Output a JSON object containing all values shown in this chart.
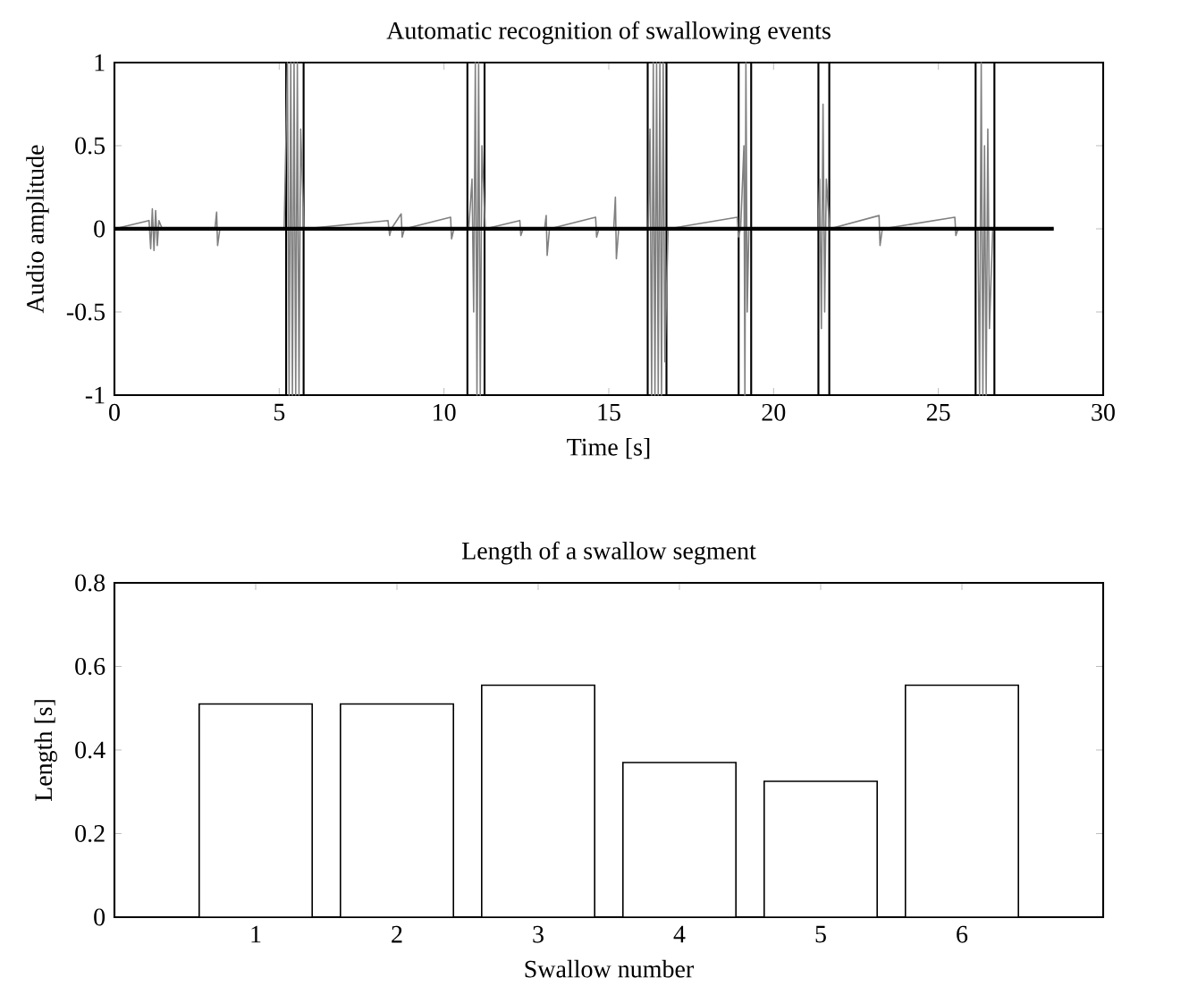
{
  "chart_data": [
    {
      "type": "line",
      "title": "Automatic recognition of swallowing events",
      "xlabel": "Time [s]",
      "ylabel": "Audio amplitude",
      "xlim": [
        0,
        30
      ],
      "ylim": [
        -1,
        1
      ],
      "xticks": [
        0,
        5,
        10,
        15,
        20,
        25,
        30
      ],
      "yticks": [
        -1,
        -0.5,
        0,
        0.5,
        1
      ],
      "series": [
        {
          "color": "#808080",
          "x": [
            0,
            1.05,
            1.1,
            1.15,
            1.2,
            1.25,
            1.3,
            1.35,
            1.45,
            3.05,
            3.1,
            3.13,
            3.2,
            5.15,
            5.25,
            5.3,
            5.35,
            5.4,
            5.45,
            5.5,
            5.55,
            5.6,
            5.65,
            5.75,
            8.3,
            8.35,
            8.4,
            8.7,
            8.73,
            8.8,
            10.2,
            10.23,
            10.3,
            10.75,
            10.85,
            10.9,
            10.95,
            11.0,
            11.05,
            11.1,
            11.15,
            11.25,
            12.3,
            12.33,
            12.4,
            13.05,
            13.1,
            13.13,
            13.2,
            14.6,
            14.63,
            14.7,
            15.15,
            15.2,
            15.23,
            15.3,
            16.2,
            16.25,
            16.3,
            16.35,
            16.4,
            16.45,
            16.5,
            16.55,
            16.6,
            16.65,
            16.7,
            16.8,
            18.9,
            18.93,
            19.0,
            19.1,
            19.13,
            19.16,
            19.2,
            19.25,
            21.35,
            21.4,
            21.45,
            21.5,
            21.55,
            21.6,
            21.7,
            23.2,
            23.23,
            23.3,
            25.5,
            25.53,
            25.6,
            26.2,
            26.25,
            26.3,
            26.35,
            26.4,
            26.45,
            26.5,
            26.55,
            26.65,
            28.5
          ],
          "values": [
            0,
            0.05,
            -0.12,
            0.12,
            -0.13,
            0.11,
            -0.1,
            0.05,
            0,
            0,
            0.1,
            -0.1,
            0,
            0,
            1,
            -1,
            1,
            -1,
            1,
            -1,
            1,
            -1,
            0.6,
            0,
            0.05,
            -0.04,
            0,
            0.09,
            -0.05,
            0,
            0.07,
            -0.06,
            0,
            0,
            0.3,
            -0.5,
            1,
            -1,
            1,
            -1,
            0.5,
            0,
            0.05,
            -0.04,
            0,
            0,
            0.08,
            -0.16,
            0,
            0.07,
            -0.05,
            0,
            0,
            0.19,
            -0.18,
            0,
            0,
            0.6,
            -1,
            1,
            -1,
            1,
            -1,
            1,
            -1,
            1,
            -0.8,
            0,
            0.07,
            -0.05,
            0,
            0.5,
            -1,
            1,
            -0.5,
            0,
            0,
            0.3,
            -0.6,
            0.75,
            -0.5,
            0.3,
            0,
            0.08,
            -0.1,
            0,
            0.07,
            -0.04,
            0,
            0,
            -1,
            1,
            -1,
            0.5,
            -1,
            0.6,
            -0.6,
            0,
            0
          ]
        },
        {
          "color": "#000000",
          "x": [
            0,
            28.5
          ],
          "values": [
            0,
            0
          ]
        }
      ],
      "ref_lines": [
        {
          "axis": "x",
          "value": 5.21,
          "color": "#000000"
        },
        {
          "axis": "x",
          "value": 5.74,
          "color": "#000000"
        },
        {
          "axis": "x",
          "value": 10.71,
          "color": "#000000"
        },
        {
          "axis": "x",
          "value": 11.23,
          "color": "#000000"
        },
        {
          "axis": "x",
          "value": 16.18,
          "color": "#000000"
        },
        {
          "axis": "x",
          "value": 16.75,
          "color": "#000000"
        },
        {
          "axis": "x",
          "value": 18.94,
          "color": "#000000"
        },
        {
          "axis": "x",
          "value": 19.32,
          "color": "#000000"
        },
        {
          "axis": "x",
          "value": 21.36,
          "color": "#000000"
        },
        {
          "axis": "x",
          "value": 21.69,
          "color": "#000000"
        },
        {
          "axis": "x",
          "value": 26.13,
          "color": "#000000"
        },
        {
          "axis": "x",
          "value": 26.7,
          "color": "#000000"
        }
      ]
    },
    {
      "type": "bar",
      "title": "Length of a swallow segment",
      "xlabel": "Swallow number",
      "ylabel": "Length [s]",
      "categories": [
        "1",
        "2",
        "3",
        "4",
        "5",
        "6"
      ],
      "values": [
        0.51,
        0.51,
        0.555,
        0.37,
        0.325,
        0.555
      ],
      "color": "#ffffff",
      "ylim": [
        0,
        0.8
      ],
      "yticks": [
        0,
        0.2,
        0.4,
        0.6,
        0.8
      ]
    }
  ]
}
